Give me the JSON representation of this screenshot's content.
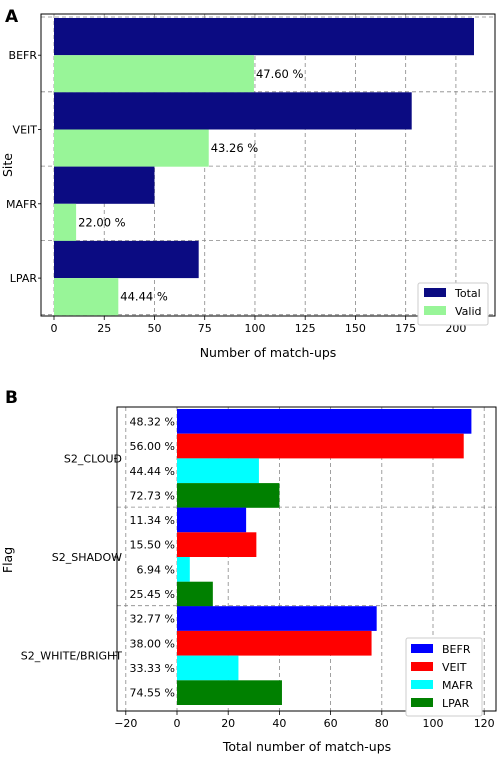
{
  "chart_data": [
    {
      "type": "bar",
      "orientation": "horizontal",
      "panel_label": "A",
      "ylabel": "Site",
      "xlabel": "Number of match-ups",
      "xlim": [
        0,
        220
      ],
      "xticks": [
        0,
        25,
        50,
        75,
        100,
        125,
        150,
        175,
        200
      ],
      "categories": [
        "BEFR",
        "VEIT",
        "MAFR",
        "LPAR"
      ],
      "series": [
        {
          "name": "Total",
          "values": [
            209,
            178,
            50,
            72
          ],
          "color": "#0b0b82"
        },
        {
          "name": "Valid",
          "values": [
            99.5,
            77,
            11,
            32
          ],
          "color": "#98f598"
        }
      ],
      "annotations": [
        "47.60 %",
        "43.26 %",
        "22.00 %",
        "44.44 %"
      ],
      "legend": {
        "position": "bottom-right",
        "entries": [
          "Total",
          "Valid"
        ]
      },
      "grid": true
    },
    {
      "type": "bar",
      "orientation": "horizontal",
      "panel_label": "B",
      "ylabel": "Flag",
      "xlabel": "Total number of match-ups",
      "xlim": [
        -20,
        122
      ],
      "xticks": [
        -20,
        0,
        20,
        40,
        60,
        80,
        100,
        120
      ],
      "categories": [
        "S2_CLOUD",
        "S2_SHADOW",
        "S2_WHITE/BRIGHT"
      ],
      "series": [
        {
          "name": "BEFR",
          "values": [
            115,
            27,
            78
          ],
          "color": "#0000ff"
        },
        {
          "name": "VEIT",
          "values": [
            112,
            31,
            76
          ],
          "color": "#ff0000"
        },
        {
          "name": "MAFR",
          "values": [
            32,
            5,
            24
          ],
          "color": "#00ffff"
        },
        {
          "name": "LPAR",
          "values": [
            40,
            14,
            41
          ],
          "color": "#008000"
        }
      ],
      "bar_labels": [
        [
          "48.32 %",
          "56.00 %",
          "44.44 %",
          "72.73 %"
        ],
        [
          "11.34 %",
          "15.50 %",
          "6.94 %",
          "25.45 %"
        ],
        [
          "32.77 %",
          "38.00 %",
          "33.33 %",
          "74.55 %"
        ]
      ],
      "legend": {
        "position": "bottom-right",
        "entries": [
          "BEFR",
          "VEIT",
          "MAFR",
          "LPAR"
        ]
      },
      "grid": true
    }
  ]
}
